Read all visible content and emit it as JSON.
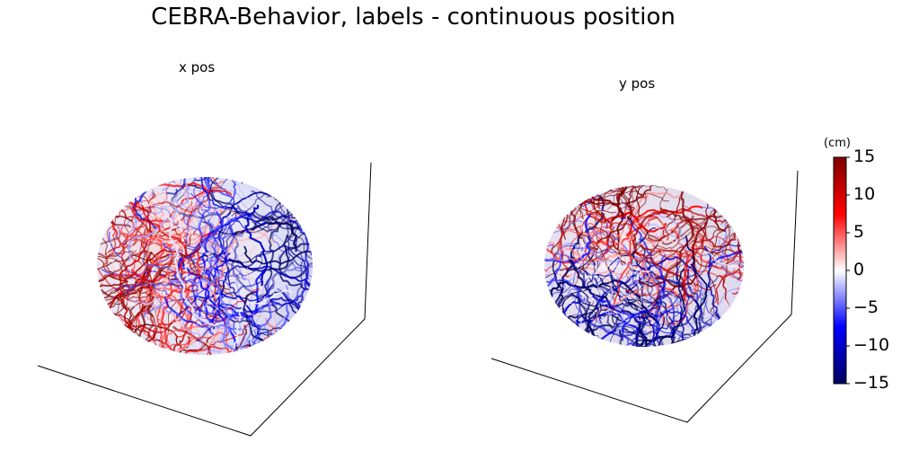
{
  "figure": {
    "title": "CEBRA-Behavior, labels - continuous position"
  },
  "chart_data": [
    {
      "type": "scatter",
      "subtype": "3d-embedding",
      "title": "x pos",
      "colormap": "seismic",
      "color_range": [
        -15,
        15
      ],
      "axes_visible": false,
      "grid": false,
      "description_values": {
        "upper_left_region": "high positive (red, ~5 to 15)",
        "right_region": "negative (blue, ~-5 to -15)",
        "lower_left_region": "high positive (red)"
      }
    },
    {
      "type": "scatter",
      "subtype": "3d-embedding",
      "title": "y pos",
      "colormap": "seismic",
      "color_range": [
        -15,
        15
      ],
      "axes_visible": false,
      "grid": false,
      "description_values": {
        "top_region": "high positive (red, ~10 to 15)",
        "bottom_region": "negative (blue, ~-10 to -15)",
        "left_region": "near zero (white/pale)"
      }
    }
  ],
  "colorbar": {
    "unit_label": "(cm)",
    "ticks": [
      "15",
      "10",
      "5",
      "0",
      "−5",
      "−10",
      "−15"
    ],
    "min": -15,
    "max": 15,
    "colors": {
      "max": "#800000",
      "high": "#ff0000",
      "mid": "#ffffff",
      "low": "#0000ff",
      "min": "#000060"
    }
  }
}
